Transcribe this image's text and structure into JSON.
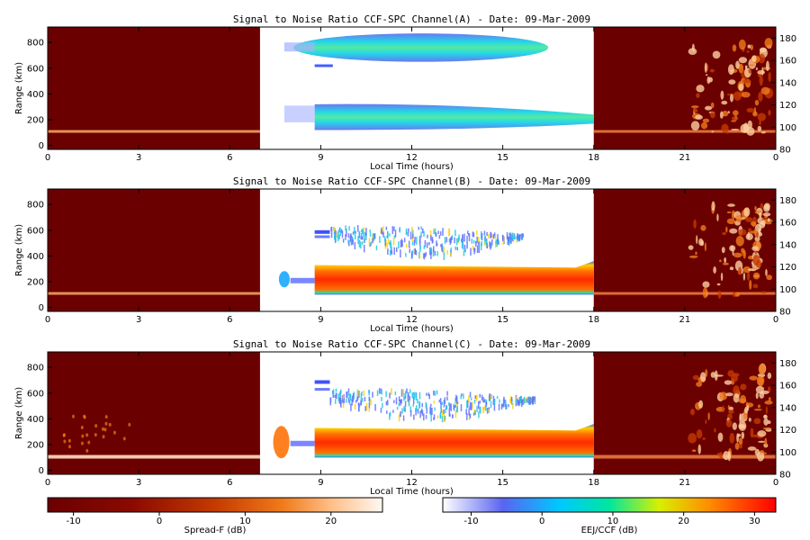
{
  "chart_data": [
    {
      "type": "heatmap",
      "title": "Signal to Noise Ratio CCF-SPC Channel(A) - Date: 09-Mar-2009",
      "xlabel": "Local Time (hours)",
      "ylabel": "Range (km)",
      "x_ticks": [
        "0",
        "3",
        "6",
        "9",
        "12",
        "15",
        "18",
        "21",
        "0"
      ],
      "y_ticks": [
        "0",
        "200",
        "400",
        "600",
        "800"
      ],
      "y2_ticks": [
        "80",
        "100",
        "120",
        "140",
        "160",
        "180"
      ],
      "xlim": [
        0,
        24
      ],
      "ylim": [
        -30,
        920
      ],
      "y2lim": [
        80,
        190
      ],
      "regions": [
        {
          "name": "",
          "x": [
            0,
            7
          ],
          "scale": "Spread-F"
        },
        {
          "name": "",
          "x": [
            7,
            18
          ],
          "scale": "EEJ/CCF"
        },
        {
          "name": "",
          "x": [
            18,
            24
          ],
          "scale": "Spread-F"
        }
      ],
      "features": [
        {
          "name": "",
          "x": [
            0,
            7
          ],
          "y": [
            100,
            100
          ],
          "level_db": 8
        },
        {
          "name": "",
          "x": [
            8.8,
            16.5
          ],
          "y": [
            650,
            870
          ],
          "level_db": 8
        },
        {
          "name": "",
          "x": [
            8.8,
            18
          ],
          "y": [
            130,
            320
          ],
          "level_db": 10
        }
      ]
    },
    {
      "type": "heatmap",
      "title": "Signal to Noise Ratio CCF-SPC Channel(B) - Date: 09-Mar-2009",
      "xlabel": "Local Time (hours)",
      "ylabel": "Range (km)",
      "x_ticks": [
        "0",
        "3",
        "6",
        "9",
        "12",
        "15",
        "18",
        "21",
        "0"
      ],
      "y_ticks": [
        "0",
        "200",
        "400",
        "600",
        "800"
      ],
      "y2_ticks": [
        "80",
        "100",
        "120",
        "140",
        "160",
        "180"
      ],
      "xlim": [
        0,
        24
      ],
      "ylim": [
        -30,
        920
      ],
      "y2lim": [
        80,
        190
      ],
      "features": [
        {
          "name": "",
          "x": [
            0,
            7
          ],
          "y": [
            100,
            100
          ],
          "level_db": 8
        },
        {
          "name": "",
          "x": [
            9.3,
            15.5
          ],
          "y": [
            450,
            720
          ],
          "level_db": 5
        },
        {
          "name": "",
          "x": [
            8.8,
            18
          ],
          "y": [
            100,
            330
          ],
          "level_db": 28
        }
      ]
    },
    {
      "type": "heatmap",
      "title": "Signal to Noise Ratio CCF-SPC Channel(C) - Date: 09-Mar-2009",
      "xlabel": "Local Time (hours)",
      "ylabel": "Range (km)",
      "x_ticks": [
        "0",
        "3",
        "6",
        "9",
        "12",
        "15",
        "18",
        "21",
        "0"
      ],
      "y_ticks": [
        "0",
        "200",
        "400",
        "600",
        "800"
      ],
      "y2_ticks": [
        "80",
        "100",
        "120",
        "140",
        "160",
        "180"
      ],
      "xlim": [
        0,
        24
      ],
      "ylim": [
        -30,
        920
      ],
      "y2lim": [
        80,
        190
      ],
      "features": [
        {
          "name": "",
          "x": [
            0,
            7
          ],
          "y": [
            100,
            100
          ],
          "level_db": 12
        },
        {
          "name": "",
          "x": [
            9.3,
            16
          ],
          "y": [
            440,
            720
          ],
          "level_db": 5
        },
        {
          "name": "",
          "x": [
            8.8,
            18
          ],
          "y": [
            100,
            330
          ],
          "level_db": 28
        }
      ]
    }
  ],
  "colorbars": [
    {
      "label": "Spread-F (dB)",
      "ticks": [
        "-10",
        "0",
        "10",
        "20"
      ],
      "range": [
        -13,
        26
      ],
      "colors": [
        "#6b0000",
        "#8a0a00",
        "#c43a00",
        "#f07a1a",
        "#ffc08a",
        "#fff8f2"
      ]
    },
    {
      "label": "EEJ/CCF (dB)",
      "ticks": [
        "-10",
        "0",
        "10",
        "20",
        "30"
      ],
      "range": [
        -14,
        33
      ],
      "colors": [
        "#ffffff",
        "#5a64f0",
        "#00c8ff",
        "#00e6a0",
        "#d8f000",
        "#ff8c00",
        "#ff0000"
      ]
    }
  ],
  "colors": {
    "dark_bg": "#6b0000",
    "mid_bg": "#ffffff"
  }
}
